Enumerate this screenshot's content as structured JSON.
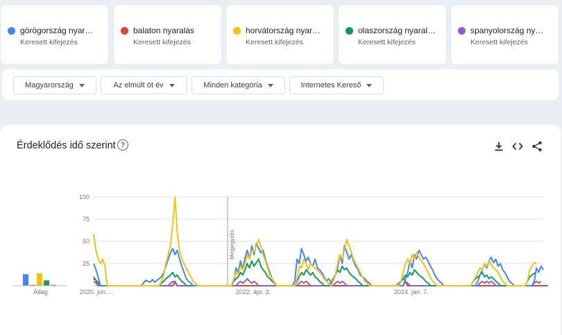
{
  "terms": [
    {
      "name": "görögország nyar…",
      "subtitle": "Keresett kifejezés",
      "color": "#4285f4"
    },
    {
      "name": "balaton nyaralás",
      "subtitle": "Keresett kifejezés",
      "color": "#db4437"
    },
    {
      "name": "horvátország nyar…",
      "subtitle": "Keresett kifejezés",
      "color": "#f4c20d"
    },
    {
      "name": "olaszország nyaral…",
      "subtitle": "Keresett kifejezés",
      "color": "#0f9d58"
    },
    {
      "name": "spanyolország ny…",
      "subtitle": "Keresett kifejezés",
      "color": "#8e5cd9"
    }
  ],
  "filters": {
    "country": "Magyarország",
    "period": "Az elmúlt öt év",
    "category": "Minden kategória",
    "source": "Internetes Kereső"
  },
  "card": {
    "title": "Érdeklődés idő szerint",
    "help_icon": "help-circle-icon",
    "tools": [
      "download-icon",
      "embed-code-icon",
      "share-icon"
    ]
  },
  "chart_data": {
    "type": "line",
    "y_ticks": [
      "100",
      "75",
      "50",
      "25"
    ],
    "ylim": [
      0,
      100
    ],
    "x_tick_labels": [
      "2020. jún.…",
      "2022. ápr. 3.",
      "2024. jan. 7."
    ],
    "annotation": "Megjegyzés",
    "average_label": "Átlag",
    "averages": [
      {
        "name": "görögország nyar…",
        "value": 13
      },
      {
        "name": "balaton nyaralás",
        "value": 1
      },
      {
        "name": "horvátország nyar…",
        "value": 14
      },
      {
        "name": "olaszország nyaral…",
        "value": 6
      },
      {
        "name": "spanyolország ny…",
        "value": 1
      }
    ],
    "x_range": [
      0,
      260
    ],
    "series": [
      {
        "name": "görögország nyar…",
        "color": "#4285f4",
        "values": [
          25,
          18,
          10,
          0,
          0,
          0,
          0,
          0,
          0,
          0,
          0,
          0,
          0,
          0,
          0,
          0,
          0,
          0,
          0,
          0,
          0,
          0,
          3,
          6,
          5,
          4,
          7,
          4,
          6,
          8,
          10,
          15,
          22,
          30,
          37,
          42,
          35,
          40,
          30,
          22,
          15,
          8,
          5,
          3,
          0,
          0,
          0,
          0,
          0,
          0,
          0,
          0,
          0,
          0,
          0,
          0,
          0,
          0,
          0,
          0,
          0,
          0,
          5,
          20,
          15,
          28,
          18,
          32,
          40,
          30,
          45,
          35,
          48,
          42,
          37,
          40,
          30,
          22,
          15,
          8,
          3,
          0,
          0,
          0,
          0,
          0,
          0,
          0,
          0,
          5,
          30,
          25,
          42,
          35,
          28,
          32,
          25,
          22,
          30,
          20,
          18,
          15,
          10,
          5,
          8,
          4,
          6,
          12,
          20,
          35,
          25,
          45,
          38,
          30,
          35,
          28,
          22,
          18,
          12,
          10,
          8,
          5,
          3,
          0,
          0,
          0,
          0,
          0,
          0,
          0,
          0,
          0,
          0,
          0,
          0,
          0,
          0,
          0,
          8,
          15,
          28,
          20,
          35,
          30,
          40,
          35,
          30,
          32,
          28,
          22,
          18,
          12,
          8,
          5,
          3,
          0,
          0,
          0,
          0,
          0,
          0,
          0,
          0,
          0,
          0,
          0,
          0,
          0,
          0,
          0,
          5,
          12,
          18,
          25,
          20,
          28,
          32,
          26,
          30,
          22,
          25,
          18,
          15,
          10,
          5,
          3,
          0,
          0,
          0,
          0,
          0,
          0,
          0,
          0,
          0,
          5,
          20,
          15,
          22,
          18
        ]
      },
      {
        "name": "balaton nyaralás",
        "color": "#db4437",
        "values": [
          8,
          6,
          0,
          0,
          0,
          0,
          0,
          0,
          0,
          0,
          0,
          0,
          0,
          0,
          0,
          0,
          0,
          0,
          0,
          0,
          0,
          0,
          0,
          0,
          0,
          0,
          0,
          0,
          0,
          0,
          0,
          0,
          0,
          0,
          0,
          0,
          5,
          0,
          0,
          0,
          0,
          0,
          0,
          0,
          0,
          0,
          0,
          0,
          0,
          0,
          0,
          0,
          0,
          0,
          0,
          0,
          0,
          0,
          0,
          0,
          0,
          0,
          0,
          0,
          0,
          0,
          0,
          0,
          0,
          0,
          0,
          0,
          0,
          0,
          0,
          0,
          0,
          0,
          0,
          0,
          0,
          0,
          0,
          0,
          0,
          0,
          0,
          0,
          0,
          0,
          0,
          0,
          0,
          0,
          0,
          0,
          0,
          0,
          0,
          0,
          0,
          0,
          0,
          0,
          0,
          0,
          0,
          0,
          0,
          0,
          0,
          0,
          0,
          0,
          0,
          0,
          0,
          0,
          0,
          0,
          0,
          0,
          0,
          0,
          0,
          0,
          0,
          0,
          0,
          0,
          0,
          0,
          0,
          0,
          0,
          0,
          0,
          0,
          5,
          0,
          0,
          0,
          0,
          0,
          0,
          0,
          0,
          0,
          0,
          0,
          0,
          0,
          0,
          0,
          0,
          0,
          0,
          0,
          0,
          0,
          0,
          0,
          0,
          0,
          0,
          0,
          0,
          0,
          0,
          0,
          0,
          0,
          0,
          0,
          0,
          0,
          0,
          0,
          0,
          0,
          0,
          0,
          0,
          0,
          0,
          0,
          0,
          0,
          0,
          0,
          0,
          0,
          0,
          0,
          0,
          0,
          0,
          0,
          0,
          0,
          0,
          0
        ]
      },
      {
        "name": "horvátország nyar…",
        "color": "#f4c20d",
        "values": [
          58,
          40,
          30,
          25,
          30,
          22,
          0,
          0,
          0,
          0,
          0,
          0,
          0,
          0,
          0,
          0,
          0,
          0,
          0,
          0,
          0,
          0,
          0,
          0,
          0,
          0,
          0,
          0,
          0,
          0,
          5,
          12,
          25,
          35,
          45,
          70,
          100,
          60,
          40,
          30,
          25,
          20,
          15,
          10,
          5,
          3,
          0,
          0,
          0,
          0,
          0,
          0,
          0,
          0,
          0,
          0,
          0,
          0,
          0,
          0,
          0,
          0,
          8,
          15,
          12,
          22,
          18,
          25,
          35,
          30,
          40,
          38,
          45,
          52,
          44,
          35,
          28,
          20,
          12,
          8,
          4,
          0,
          0,
          0,
          0,
          0,
          0,
          0,
          0,
          0,
          8,
          22,
          20,
          30,
          25,
          18,
          25,
          22,
          20,
          18,
          15,
          12,
          8,
          5,
          3,
          0,
          5,
          12,
          25,
          35,
          30,
          40,
          52,
          45,
          38,
          30,
          25,
          20,
          15,
          10,
          5,
          3,
          0,
          0,
          0,
          0,
          0,
          0,
          0,
          0,
          0,
          0,
          0,
          0,
          0,
          0,
          5,
          15,
          25,
          30,
          25,
          35,
          30,
          38,
          32,
          28,
          25,
          20,
          15,
          10,
          5,
          3,
          0,
          0,
          0,
          0,
          0,
          0,
          0,
          0,
          0,
          0,
          0,
          0,
          0,
          0,
          0,
          0,
          5,
          10,
          15,
          20,
          18,
          25,
          22,
          28,
          24,
          20,
          18,
          15,
          10,
          5,
          3,
          0,
          0,
          0,
          0,
          0,
          0,
          0,
          0,
          0,
          5,
          18,
          22,
          26,
          25
        ]
      },
      {
        "name": "olaszország nyaral…",
        "color": "#0f9d58",
        "values": [
          10,
          6,
          4,
          0,
          0,
          0,
          0,
          0,
          0,
          0,
          0,
          0,
          0,
          0,
          0,
          0,
          0,
          0,
          0,
          0,
          0,
          0,
          0,
          0,
          0,
          0,
          0,
          0,
          0,
          0,
          3,
          5,
          8,
          10,
          12,
          15,
          10,
          12,
          8,
          5,
          3,
          0,
          0,
          0,
          0,
          0,
          0,
          0,
          0,
          0,
          0,
          0,
          0,
          0,
          0,
          0,
          0,
          0,
          0,
          0,
          0,
          0,
          5,
          8,
          10,
          15,
          12,
          18,
          25,
          20,
          28,
          22,
          26,
          30,
          22,
          18,
          15,
          10,
          8,
          5,
          3,
          0,
          0,
          0,
          0,
          0,
          0,
          0,
          0,
          0,
          5,
          10,
          15,
          12,
          18,
          15,
          12,
          15,
          10,
          8,
          5,
          3,
          0,
          0,
          0,
          3,
          8,
          12,
          18,
          15,
          22,
          18,
          20,
          15,
          12,
          10,
          8,
          5,
          3,
          0,
          0,
          0,
          0,
          0,
          0,
          0,
          0,
          0,
          0,
          0,
          0,
          0,
          0,
          0,
          0,
          0,
          5,
          8,
          12,
          10,
          15,
          12,
          18,
          15,
          12,
          10,
          8,
          5,
          3,
          0,
          0,
          0,
          0,
          0,
          0,
          0,
          0,
          0,
          0,
          0,
          0,
          0,
          0,
          0,
          0,
          0,
          0,
          0,
          5,
          8,
          10,
          12,
          15,
          10,
          12,
          8,
          10,
          8,
          5,
          3,
          0,
          0,
          0,
          0,
          0,
          0,
          0,
          0,
          0,
          0,
          0,
          0,
          5,
          10,
          12,
          14,
          15
        ]
      },
      {
        "name": "spanyolország ny…",
        "color": "#8e5cd9",
        "values": [
          5,
          3,
          0,
          0,
          0,
          0,
          0,
          0,
          0,
          0,
          0,
          0,
          0,
          0,
          0,
          0,
          0,
          0,
          0,
          0,
          0,
          0,
          0,
          0,
          0,
          0,
          0,
          0,
          0,
          0,
          0,
          0,
          0,
          0,
          3,
          5,
          3,
          0,
          0,
          0,
          0,
          0,
          0,
          0,
          0,
          0,
          0,
          0,
          0,
          0,
          0,
          0,
          0,
          0,
          0,
          0,
          0,
          0,
          0,
          0,
          0,
          0,
          0,
          0,
          3,
          5,
          3,
          5,
          8,
          5,
          3,
          5,
          3,
          0,
          0,
          0,
          0,
          0,
          0,
          0,
          0,
          0,
          0,
          0,
          0,
          0,
          0,
          0,
          0,
          0,
          0,
          3,
          5,
          3,
          5,
          3,
          0,
          0,
          0,
          0,
          0,
          0,
          0,
          0,
          0,
          0,
          0,
          3,
          5,
          3,
          5,
          3,
          0,
          0,
          0,
          0,
          0,
          0,
          0,
          0,
          0,
          0,
          0,
          0,
          0,
          0,
          0,
          0,
          0,
          0,
          0,
          0,
          0,
          0,
          0,
          3,
          5,
          8,
          5,
          3,
          0,
          0,
          0,
          0,
          0,
          0,
          0,
          0,
          0,
          0,
          0,
          0,
          0,
          0,
          0,
          0,
          0,
          0,
          0,
          0,
          0,
          0,
          0,
          0,
          0,
          0,
          0,
          0,
          0,
          0,
          0,
          3,
          5,
          3,
          5,
          3,
          5,
          3,
          0,
          0,
          0,
          0,
          0,
          0,
          0,
          0,
          0,
          0,
          0,
          0,
          0,
          0,
          0,
          0,
          0,
          3,
          5,
          3,
          5
        ]
      }
    ]
  }
}
